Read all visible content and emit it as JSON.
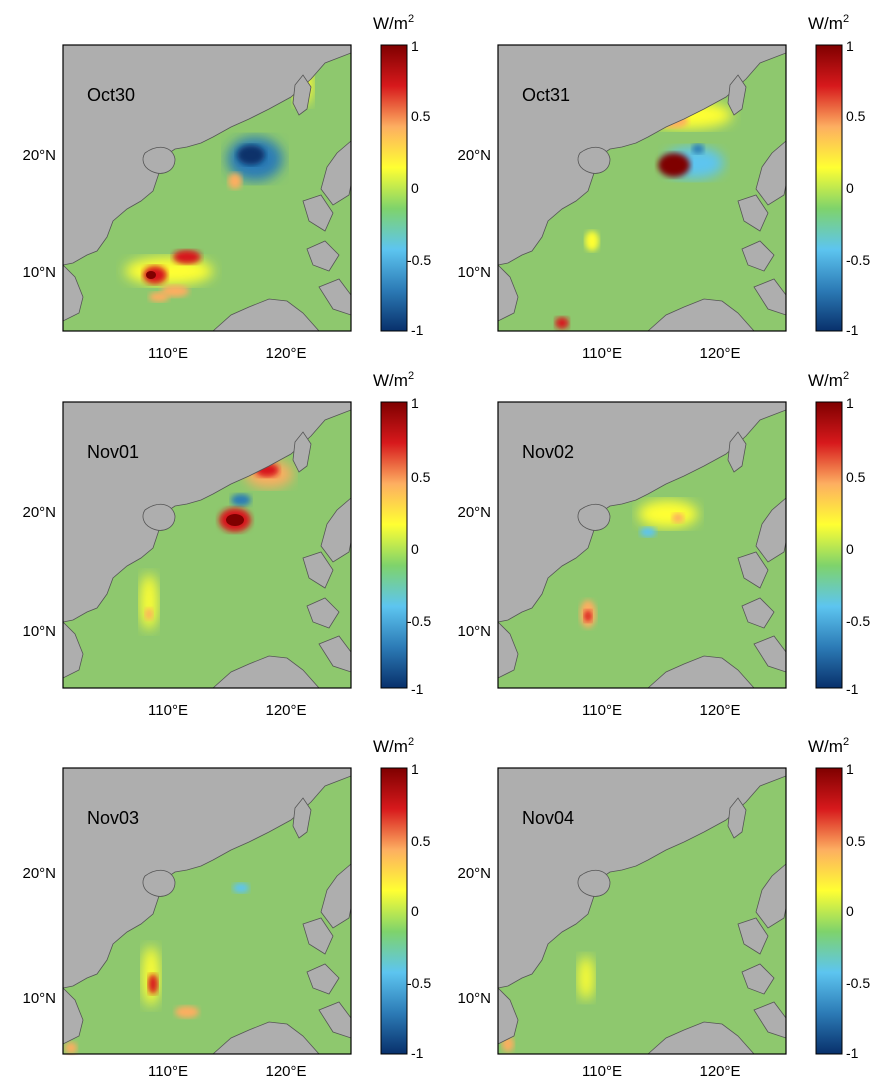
{
  "figure": {
    "colorbar": {
      "unit_base": "W/m",
      "unit_exp": "2",
      "tick_labels": [
        "1",
        "0.5",
        "0",
        "-0.5",
        "-1"
      ],
      "colors": [
        "#7f0000",
        "#d7191c",
        "#fdae61",
        "#ffff33",
        "#7fd36b",
        "#5dc5f0",
        "#2c7bb6",
        "#08306b"
      ]
    },
    "axes": {
      "x_tick_labels": [
        "110°E",
        "120°E"
      ],
      "y_tick_labels": [
        "20°N",
        "10°N"
      ]
    },
    "colors": {
      "land": "#aeaeae",
      "ocean_field": "#8ec86e",
      "coast": "#555555"
    },
    "panels": [
      {
        "label": "Oct30"
      },
      {
        "label": "Oct31"
      },
      {
        "label": "Nov01"
      },
      {
        "label": "Nov02"
      },
      {
        "label": "Nov03"
      },
      {
        "label": "Nov04"
      }
    ]
  }
}
